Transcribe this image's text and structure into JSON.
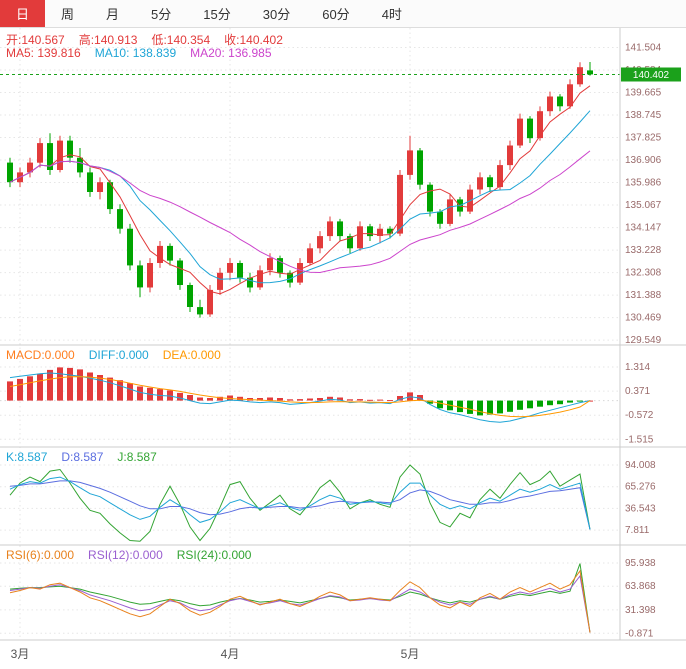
{
  "tabbar": {
    "tabs": [
      {
        "label": "日",
        "active": true
      },
      {
        "label": "周",
        "active": false
      },
      {
        "label": "月",
        "active": false
      },
      {
        "label": "5分",
        "active": false
      },
      {
        "label": "15分",
        "active": false
      },
      {
        "label": "30分",
        "active": false
      },
      {
        "label": "60分",
        "active": false
      },
      {
        "label": "4时",
        "active": false
      }
    ]
  },
  "main_header": {
    "open": "开:140.567",
    "high": "高:140.913",
    "low": "低:140.354",
    "close": "收:140.402",
    "ma5": "MA5: 139.816",
    "ma10": "MA10: 138.839",
    "ma20": "MA20: 136.985"
  },
  "macd_header": {
    "macd": "MACD:0.000",
    "diff": "DIFF:0.000",
    "dea": "DEA:0.000"
  },
  "kdj_header": {
    "k": "K:8.587",
    "d": "D:8.587",
    "j": "J:8.587"
  },
  "rsi_header": {
    "rsi6": "RSI(6):0.000",
    "rsi12": "RSI(12):0.000",
    "rsi24": "RSI(24):0.000"
  },
  "chart_data": {
    "type": "candlestick",
    "title": "",
    "xlabel": "",
    "ylabel": "",
    "legend_position": "top-left",
    "grid": true,
    "current_price": 140.402,
    "y_ticks_main": [
      141.504,
      140.584,
      139.665,
      138.745,
      137.825,
      136.906,
      135.986,
      135.067,
      134.147,
      133.228,
      132.308,
      131.388,
      130.469,
      129.549
    ],
    "x_ticks": [
      {
        "label": "3月",
        "index": 1
      },
      {
        "label": "4月",
        "index": 22
      },
      {
        "label": "5月",
        "index": 40
      }
    ],
    "ma_periods": [
      5,
      10,
      20
    ],
    "candles": {
      "open": [
        136.8,
        136.0,
        136.4,
        136.8,
        137.6,
        136.5,
        137.7,
        137.0,
        136.4,
        135.6,
        136.0,
        134.9,
        134.1,
        132.6,
        131.7,
        132.7,
        133.4,
        132.8,
        131.8,
        130.9,
        130.6,
        131.6,
        132.3,
        132.7,
        132.1,
        131.7,
        132.4,
        132.9,
        132.3,
        131.9,
        132.7,
        133.3,
        133.8,
        134.4,
        133.8,
        133.3,
        134.2,
        133.8,
        134.1,
        133.9,
        136.3,
        137.3,
        135.9,
        134.8,
        134.3,
        135.3,
        134.8,
        135.7,
        136.2,
        135.8,
        136.7,
        137.5,
        138.6,
        137.8,
        138.9,
        139.5,
        139.1,
        140.0,
        140.567
      ],
      "high": [
        137.0,
        136.6,
        137.0,
        137.8,
        138.0,
        137.9,
        137.9,
        137.4,
        136.6,
        136.2,
        136.1,
        135.1,
        134.3,
        132.8,
        132.9,
        133.6,
        133.5,
        132.9,
        131.9,
        131.2,
        131.8,
        132.5,
        132.9,
        132.8,
        132.3,
        132.6,
        133.1,
        133.0,
        132.4,
        132.9,
        133.5,
        134.0,
        134.6,
        134.5,
        133.9,
        134.4,
        134.3,
        134.3,
        134.2,
        136.5,
        137.9,
        137.4,
        136.0,
        134.9,
        135.5,
        135.4,
        135.9,
        136.4,
        136.3,
        136.9,
        137.7,
        138.8,
        138.7,
        139.1,
        139.7,
        139.6,
        140.2,
        140.9,
        140.913
      ],
      "low": [
        135.8,
        135.8,
        136.2,
        136.6,
        136.3,
        136.4,
        136.8,
        136.2,
        135.4,
        135.3,
        134.7,
        133.9,
        132.4,
        131.3,
        131.5,
        132.5,
        132.6,
        131.6,
        130.7,
        130.469,
        130.5,
        131.4,
        132.0,
        131.9,
        131.5,
        131.6,
        132.2,
        132.1,
        131.7,
        131.8,
        132.6,
        133.1,
        133.6,
        133.6,
        133.1,
        133.2,
        133.6,
        133.5,
        133.7,
        133.8,
        136.1,
        135.7,
        134.6,
        134.1,
        134.2,
        134.6,
        134.7,
        135.5,
        135.6,
        135.7,
        136.5,
        137.4,
        137.6,
        137.7,
        138.7,
        138.9,
        139.0,
        139.9,
        140.354
      ],
      "close": [
        136.0,
        136.4,
        136.8,
        137.6,
        136.5,
        137.7,
        137.0,
        136.4,
        135.6,
        136.0,
        134.9,
        134.1,
        132.6,
        131.7,
        132.7,
        133.4,
        132.8,
        131.8,
        130.9,
        130.6,
        131.6,
        132.3,
        132.7,
        132.1,
        131.7,
        132.4,
        132.9,
        132.3,
        131.9,
        132.7,
        133.3,
        133.8,
        134.4,
        133.8,
        133.3,
        134.2,
        133.8,
        134.1,
        133.9,
        136.3,
        137.3,
        135.9,
        134.8,
        134.3,
        135.3,
        134.8,
        135.7,
        136.2,
        135.8,
        136.7,
        137.5,
        138.6,
        137.8,
        138.9,
        139.5,
        139.1,
        140.0,
        140.7,
        140.402
      ]
    },
    "macd": {
      "y_ticks": [
        1.314,
        0.371,
        -0.572,
        -1.515
      ],
      "bars": [
        0.75,
        0.85,
        0.95,
        1.05,
        1.2,
        1.3,
        1.28,
        1.22,
        1.1,
        1.0,
        0.9,
        0.8,
        0.68,
        0.55,
        0.5,
        0.45,
        0.4,
        0.3,
        0.22,
        0.12,
        0.1,
        0.15,
        0.2,
        0.15,
        0.1,
        0.1,
        0.12,
        0.1,
        0.05,
        0.06,
        0.08,
        0.1,
        0.15,
        0.12,
        0.05,
        0.06,
        0.03,
        0.04,
        0.02,
        0.18,
        0.32,
        0.22,
        -0.12,
        -0.3,
        -0.38,
        -0.45,
        -0.52,
        -0.58,
        -0.55,
        -0.5,
        -0.44,
        -0.36,
        -0.3,
        -0.24,
        -0.18,
        -0.14,
        -0.08,
        -0.04,
        0.0
      ],
      "diff": [
        0.9,
        0.95,
        1.0,
        1.05,
        1.08,
        1.05,
        1.0,
        0.95,
        0.88,
        0.8,
        0.7,
        0.58,
        0.45,
        0.32,
        0.25,
        0.2,
        0.18,
        0.1,
        0.0,
        -0.1,
        -0.12,
        -0.05,
        0.02,
        0.0,
        -0.05,
        -0.08,
        -0.05,
        -0.08,
        -0.15,
        -0.12,
        -0.08,
        -0.02,
        0.05,
        0.02,
        -0.08,
        -0.05,
        -0.1,
        -0.08,
        -0.12,
        0.05,
        0.15,
        0.1,
        -0.15,
        -0.35,
        -0.48,
        -0.55,
        -0.65,
        -0.75,
        -0.82,
        -0.85,
        -0.8,
        -0.7,
        -0.6,
        -0.48,
        -0.38,
        -0.28,
        -0.18,
        -0.08,
        0.0
      ],
      "dea": [
        0.55,
        0.62,
        0.7,
        0.77,
        0.84,
        0.9,
        0.93,
        0.94,
        0.92,
        0.88,
        0.83,
        0.76,
        0.68,
        0.6,
        0.53,
        0.47,
        0.42,
        0.36,
        0.29,
        0.22,
        0.16,
        0.11,
        0.08,
        0.06,
        0.04,
        0.02,
        0.0,
        -0.02,
        -0.05,
        -0.07,
        -0.08,
        -0.07,
        -0.05,
        -0.04,
        -0.05,
        -0.05,
        -0.06,
        -0.07,
        -0.08,
        -0.05,
        -0.01,
        0.01,
        -0.03,
        -0.1,
        -0.18,
        -0.26,
        -0.34,
        -0.43,
        -0.51,
        -0.58,
        -0.62,
        -0.63,
        -0.62,
        -0.58,
        -0.52,
        -0.45,
        -0.36,
        -0.25,
        0.0
      ]
    },
    "kdj": {
      "y_ticks": [
        94.008,
        65.276,
        36.543,
        7.811
      ],
      "k": [
        62,
        68,
        72,
        70,
        76,
        78,
        72,
        64,
        56,
        52,
        44,
        36,
        28,
        22,
        26,
        38,
        48,
        40,
        28,
        18,
        22,
        32,
        44,
        48,
        42,
        36,
        40,
        44,
        38,
        34,
        40,
        48,
        54,
        50,
        42,
        44,
        46,
        44,
        42,
        58,
        70,
        70,
        54,
        42,
        36,
        40,
        36,
        44,
        50,
        46,
        54,
        62,
        58,
        62,
        68,
        62,
        66,
        70,
        8.587
      ],
      "d": [
        66,
        67,
        69,
        69,
        71,
        73,
        73,
        71,
        67,
        63,
        58,
        52,
        46,
        40,
        36,
        36,
        39,
        39,
        36,
        31,
        28,
        29,
        32,
        36,
        38,
        37,
        38,
        39,
        39,
        37,
        38,
        40,
        44,
        46,
        45,
        44,
        45,
        45,
        44,
        48,
        57,
        61,
        59,
        54,
        48,
        45,
        42,
        42,
        44,
        44,
        47,
        51,
        53,
        56,
        59,
        60,
        62,
        64,
        8.587
      ],
      "j": [
        54,
        70,
        78,
        72,
        86,
        88,
        70,
        50,
        34,
        30,
        16,
        4,
        -6,
        -7,
        6,
        42,
        66,
        42,
        12,
        -6,
        10,
        38,
        68,
        72,
        50,
        34,
        44,
        54,
        36,
        28,
        44,
        64,
        74,
        58,
        36,
        44,
        48,
        42,
        38,
        78,
        94,
        82,
        44,
        18,
        12,
        30,
        24,
        48,
        62,
        50,
        68,
        84,
        68,
        74,
        86,
        66,
        74,
        82,
        8.587
      ]
    },
    "rsi": {
      "y_ticks": [
        95.938,
        63.868,
        31.398,
        -0.871
      ],
      "rsi6": [
        55,
        58,
        62,
        60,
        66,
        68,
        62,
        56,
        48,
        44,
        38,
        32,
        26,
        22,
        26,
        36,
        46,
        40,
        30,
        24,
        28,
        36,
        46,
        50,
        44,
        38,
        42,
        46,
        40,
        36,
        42,
        50,
        56,
        52,
        44,
        46,
        48,
        46,
        44,
        58,
        70,
        62,
        48,
        38,
        34,
        42,
        36,
        48,
        54,
        46,
        56,
        62,
        56,
        62,
        68,
        60,
        66,
        85,
        0.0
      ],
      "rsi12": [
        58,
        60,
        62,
        61,
        64,
        66,
        62,
        58,
        52,
        48,
        44,
        39,
        34,
        30,
        32,
        38,
        44,
        41,
        34,
        30,
        32,
        38,
        44,
        47,
        43,
        39,
        41,
        44,
        40,
        38,
        42,
        47,
        51,
        49,
        44,
        45,
        47,
        45,
        44,
        52,
        60,
        56,
        48,
        42,
        38,
        42,
        39,
        46,
        50,
        46,
        52,
        56,
        53,
        57,
        61,
        56,
        60,
        78,
        0.0
      ],
      "rsi24": [
        60,
        61,
        62,
        62,
        63,
        64,
        62,
        60,
        56,
        53,
        50,
        46,
        42,
        39,
        40,
        43,
        46,
        44,
        40,
        37,
        38,
        42,
        45,
        47,
        45,
        42,
        43,
        45,
        43,
        41,
        44,
        47,
        50,
        48,
        45,
        46,
        47,
        46,
        45,
        50,
        56,
        53,
        48,
        44,
        41,
        44,
        42,
        46,
        49,
        46,
        50,
        53,
        51,
        54,
        57,
        54,
        57,
        95,
        0.0
      ]
    },
    "colors": {
      "up": "#e23b3b",
      "down": "#00a400",
      "ma5": "#e23b3b",
      "ma10": "#1fa5d6",
      "ma20": "#cc44cc",
      "diff": "#1fa5d6",
      "dea": "#ff9900",
      "k": "#1fa5d6",
      "d": "#5b6ee0",
      "j": "#33a433",
      "rsi6": "#e8821e",
      "rsi12": "#9a5fd0",
      "rsi24": "#33a433",
      "axis_text": "#996a6a",
      "month_text": "#555555",
      "grid": "#e6e6e6",
      "separator": "#cccccc",
      "current_line": "#1ba11b",
      "price_badge_bg": "#1ba11b",
      "price_badge_text": "#ffffff"
    }
  }
}
